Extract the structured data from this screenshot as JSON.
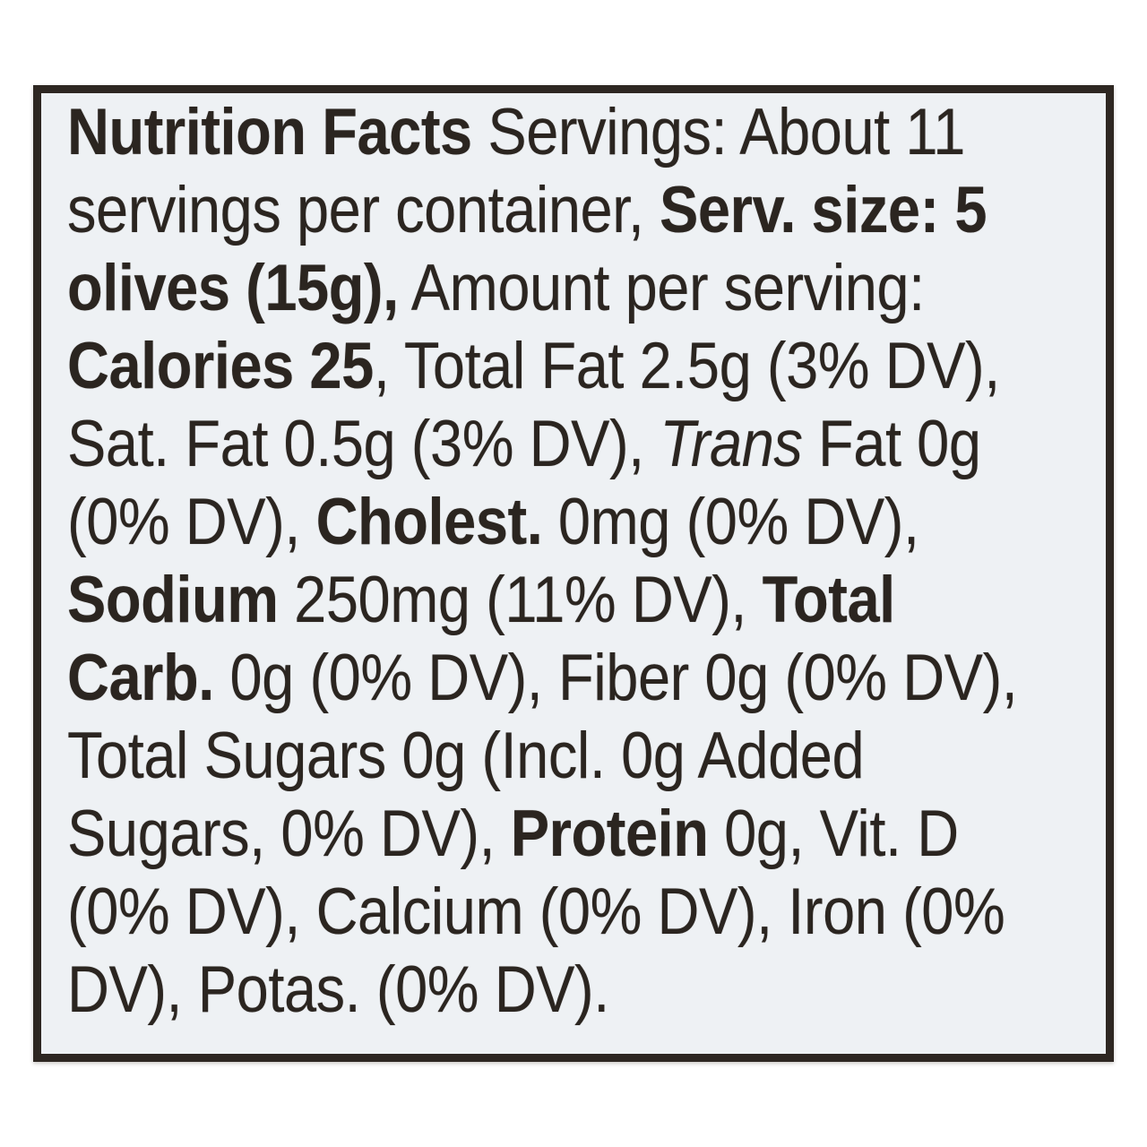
{
  "title": "Nutrition Facts label (linear format)",
  "colors": {
    "page_bg": "#ffffff",
    "label_bg": "#eef1f4",
    "frame": "#2e2722",
    "text": "#2b2520"
  },
  "facts": {
    "servings_per_container": "About 11",
    "serving_size": "5 olives (15g)",
    "calories": "25",
    "total_fat": "2.5g (3% DV)",
    "saturated_fat": "0.5g (3% DV)",
    "trans_fat": "0g (0% DV)",
    "cholesterol": "0mg (0% DV)",
    "sodium": "250mg (11% DV)",
    "total_carbohydrate": "0g (0% DV)",
    "fiber": "0g (0% DV)",
    "total_sugars": "0g (Incl. 0g Added Sugars, 0% DV)",
    "protein": "0g",
    "vitamin_d": "0% DV",
    "calcium": "0% DV",
    "iron": "0% DV",
    "potassium": "0% DV"
  },
  "label": {
    "lines": [
      {
        "runs": [
          {
            "t": "Nutrition Facts",
            "s": "b"
          },
          {
            "t": " Servings: About 11",
            "s": "r"
          }
        ]
      },
      {
        "runs": [
          {
            "t": "servings per container, ",
            "s": "r"
          },
          {
            "t": "Serv. size: 5",
            "s": "b"
          }
        ]
      },
      {
        "runs": [
          {
            "t": "olives (15g),",
            "s": "b"
          },
          {
            "t": " Amount per serving:",
            "s": "r"
          }
        ]
      },
      {
        "runs": [
          {
            "t": "Calories 25",
            "s": "b"
          },
          {
            "t": ", Total Fat 2.5g (3% DV),",
            "s": "r"
          }
        ]
      },
      {
        "runs": [
          {
            "t": "Sat. Fat 0.5g (3% DV), ",
            "s": "r"
          },
          {
            "t": "Trans",
            "s": "i"
          },
          {
            "t": " Fat 0g",
            "s": "r"
          }
        ]
      },
      {
        "runs": [
          {
            "t": "(0% DV), ",
            "s": "r"
          },
          {
            "t": "Cholest.",
            "s": "b"
          },
          {
            "t": " 0mg (0% DV),",
            "s": "r"
          }
        ]
      },
      {
        "runs": [
          {
            "t": "Sodium",
            "s": "b"
          },
          {
            "t": " 250mg (11% DV), ",
            "s": "r"
          },
          {
            "t": "Total",
            "s": "b"
          }
        ]
      },
      {
        "runs": [
          {
            "t": "Carb.",
            "s": "b"
          },
          {
            "t": " 0g (0% DV), Fiber 0g (0% DV),",
            "s": "r"
          }
        ]
      },
      {
        "runs": [
          {
            "t": "Total Sugars 0g (Incl. 0g Added",
            "s": "r"
          }
        ]
      },
      {
        "runs": [
          {
            "t": "Sugars, 0% DV), ",
            "s": "r"
          },
          {
            "t": "Protein",
            "s": "b"
          },
          {
            "t": " 0g, Vit. D",
            "s": "r"
          }
        ]
      },
      {
        "runs": [
          {
            "t": "(0% DV), Calcium (0% DV), Iron (0%",
            "s": "r"
          }
        ]
      },
      {
        "runs": [
          {
            "t": "DV), Potas. (0% DV).",
            "s": "r"
          }
        ]
      }
    ]
  }
}
